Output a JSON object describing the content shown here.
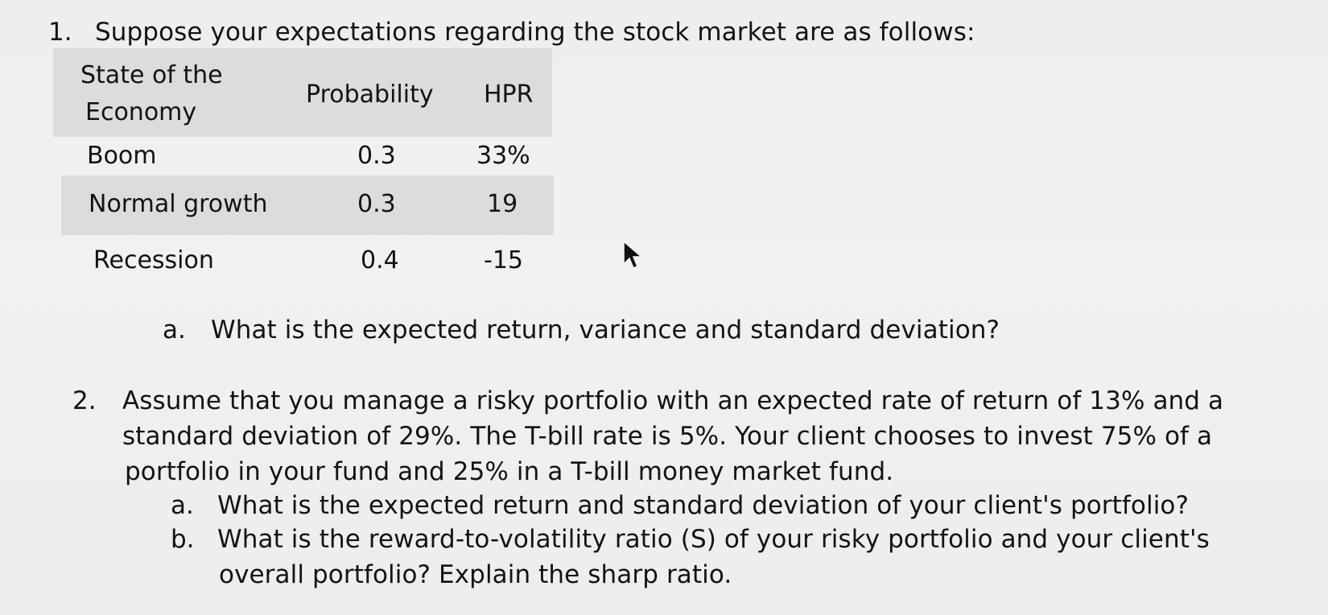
{
  "question1": {
    "number": "1.",
    "prompt": "Suppose your expectations regarding the stock market are as follows:",
    "table": {
      "headers": [
        "State of the",
        "Economy",
        "Probability",
        "HPR"
      ],
      "rows": [
        {
          "state": "Boom",
          "probability": "0.3",
          "hpr": "33%"
        },
        {
          "state": "Normal growth",
          "probability": "0.3",
          "hpr": "19"
        },
        {
          "state": "Recession",
          "probability": "0.4",
          "hpr": "-15"
        }
      ]
    },
    "part_a": {
      "letter": "a.",
      "text": "What is the expected return, variance and standard deviation?"
    }
  },
  "question2": {
    "number": "2.",
    "lines": [
      "Assume that you manage a risky portfolio with an expected rate of return of 13% and a",
      "standard deviation of 29%. The T-bill rate is 5%. Your client chooses to invest 75% of a",
      "portfolio in your fund and 25% in a T-bill money market fund."
    ],
    "part_a": {
      "letter": "a.",
      "text": "What is the expected return and standard deviation of your client's portfolio?"
    },
    "part_b": {
      "letter": "b.",
      "line1": "What is the reward-to-volatility ratio (S) of your risky portfolio and your client's",
      "line2": "overall portfolio? Explain the sharp ratio."
    }
  }
}
